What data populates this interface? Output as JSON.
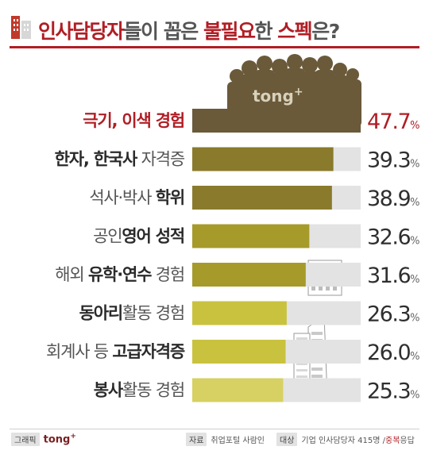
{
  "title": {
    "parts": [
      "인사담당자",
      "들이 꼽은 ",
      "불필요",
      "한 ",
      "스펙",
      "은?"
    ]
  },
  "brand": {
    "name": "tong",
    "mark": "+"
  },
  "footer": {
    "graphic_tag": "그래픽",
    "source_tag": "자료",
    "source_value": "취업포털 사람인",
    "target_tag": "대상",
    "target_value": "기업 인사담당자 415명 / ",
    "target_note": "중복",
    "target_suffix": "응답"
  },
  "colors": {
    "title_accent": "#b01e25",
    "bar_track": "#e3e3e3",
    "bar_first": "#6a5a3a",
    "bar_dark_olive": "#8a7a2c",
    "bar_mid_olive": "#a69a2a",
    "bar_light": "#c9c23e",
    "bar_pale": "#d6d162"
  },
  "chart_data": {
    "type": "bar",
    "orientation": "horizontal",
    "categories": [
      "극기, 이색 경험",
      "한자, 한국사 자격증",
      "석사·박사 학위",
      "공인영어 성적",
      "해외 유학·연수 경험",
      "동아리활동 경험",
      "회계사 등 고급자격증",
      "봉사활동 경험"
    ],
    "values": [
      47.7,
      39.3,
      38.9,
      32.6,
      31.6,
      26.3,
      26.0,
      25.3
    ],
    "value_labels": [
      {
        "main": "47.7",
        "unit": "%"
      },
      {
        "main": "39.3",
        "unit": "%"
      },
      {
        "main": "38.9",
        "unit": "%"
      },
      {
        "main": "32.6",
        "unit": "%"
      },
      {
        "main": "31.6",
        "unit": "%"
      },
      {
        "main": "26.3",
        "unit": "%"
      },
      {
        "main": "26.0",
        "unit": "%"
      },
      {
        "main": "25.3",
        "unit": "%"
      }
    ],
    "label_segments": [
      [
        {
          "t": "극기, 이색 경험",
          "b": true,
          "c": "#b01e25"
        }
      ],
      [
        {
          "t": "한자, 한국사",
          "b": true
        },
        {
          "t": " 자격증",
          "b": false
        }
      ],
      [
        {
          "t": "석사·박사 ",
          "b": false
        },
        {
          "t": "학위",
          "b": true
        }
      ],
      [
        {
          "t": "공인",
          "b": false
        },
        {
          "t": "영어 성적",
          "b": true
        }
      ],
      [
        {
          "t": "해외 ",
          "b": false
        },
        {
          "t": "유학·연수",
          "b": true
        },
        {
          "t": " 경험",
          "b": false
        }
      ],
      [
        {
          "t": "동아리",
          "b": true
        },
        {
          "t": "활동 경험",
          "b": false
        }
      ],
      [
        {
          "t": "회계사 등 ",
          "b": false
        },
        {
          "t": "고급자격증",
          "b": true
        }
      ],
      [
        {
          "t": "봉사",
          "b": true
        },
        {
          "t": "활동 경험",
          "b": false
        }
      ]
    ],
    "xlim": [
      0,
      50
    ]
  }
}
